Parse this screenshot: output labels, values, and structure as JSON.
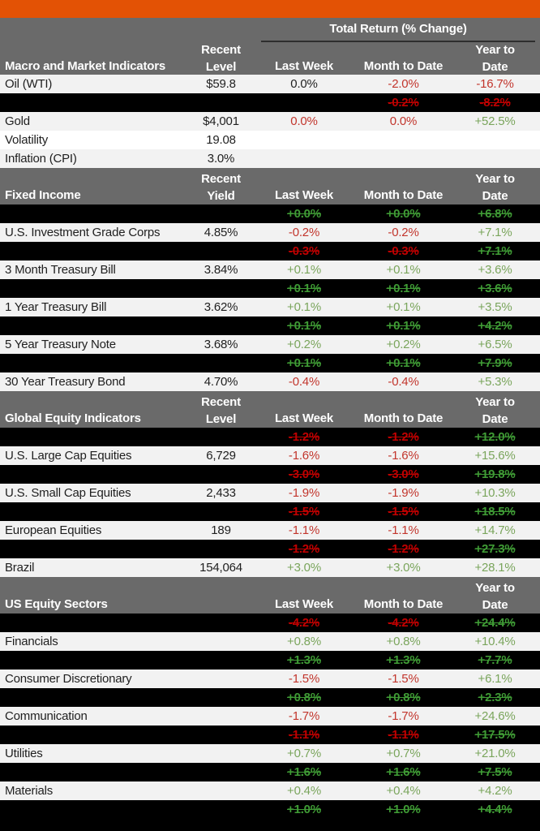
{
  "colors": {
    "accent_orange": "#E35205",
    "header_gray": "#6A6A6A",
    "row_light": "#F2F2F2",
    "row_white": "#FFFFFF",
    "row_black": "#000000",
    "negative_red": "#C2352C",
    "positive_green": "#7AA55C",
    "redacted_red": "#C00000",
    "redacted_green": "#3F9B35"
  },
  "header": {
    "total_return": "Total Return (% Change)",
    "last_week": "Last Week",
    "month_to_date": "Month to Date",
    "year_to": "Year to",
    "date": "Date"
  },
  "sections": [
    {
      "title": "Macro and Market Indicators",
      "banner": true,
      "level_header": [
        "Recent",
        "Level"
      ],
      "rows": [
        {
          "type": "data",
          "bg": "light",
          "label": "Oil (WTI)",
          "level": "$59.8",
          "cells": [
            [
              "0.0%",
              "dark"
            ],
            [
              "-2.0%",
              "red"
            ],
            [
              "-16.7%",
              "red"
            ]
          ]
        },
        {
          "type": "black",
          "label": "",
          "level": "",
          "cells": [
            [
              "",
              ""
            ],
            [
              "-0.2%",
              "red"
            ],
            [
              "-8.2%",
              "red"
            ]
          ]
        },
        {
          "type": "data",
          "bg": "light",
          "label": "Gold",
          "level": "$4,001",
          "cells": [
            [
              "0.0%",
              "red"
            ],
            [
              "0.0%",
              "red"
            ],
            [
              "+52.5%",
              "green"
            ]
          ]
        },
        {
          "type": "data",
          "bg": "white",
          "label": "Volatility",
          "level": "19.08",
          "cells": [
            [
              "",
              ""
            ],
            [
              "",
              ""
            ],
            [
              "",
              ""
            ]
          ]
        },
        {
          "type": "data",
          "bg": "light",
          "label": "Inflation (CPI)",
          "level": "3.0%",
          "cells": [
            [
              "",
              ""
            ],
            [
              "",
              ""
            ],
            [
              "",
              ""
            ]
          ]
        }
      ]
    },
    {
      "title": "Fixed Income",
      "banner": false,
      "level_header": [
        "Recent",
        "Yield"
      ],
      "rows": [
        {
          "type": "black",
          "label": "",
          "level": "",
          "cells": [
            [
              "+0.0%",
              "green"
            ],
            [
              "+0.0%",
              "green"
            ],
            [
              "+6.8%",
              "green"
            ]
          ]
        },
        {
          "type": "data",
          "bg": "light",
          "label": "U.S. Investment Grade Corps",
          "level": "4.85%",
          "cells": [
            [
              "-0.2%",
              "red"
            ],
            [
              "-0.2%",
              "red"
            ],
            [
              "+7.1%",
              "green"
            ]
          ]
        },
        {
          "type": "black",
          "label": "",
          "level": "",
          "cells": [
            [
              "-0.3%",
              "red"
            ],
            [
              "-0.3%",
              "red"
            ],
            [
              "+7.1%",
              "green"
            ]
          ]
        },
        {
          "type": "data",
          "bg": "light",
          "label": "3 Month Treasury Bill",
          "level": "3.84%",
          "cells": [
            [
              "+0.1%",
              "green"
            ],
            [
              "+0.1%",
              "green"
            ],
            [
              "+3.6%",
              "green"
            ]
          ]
        },
        {
          "type": "black",
          "label": "",
          "level": "",
          "cells": [
            [
              "+0.1%",
              "green"
            ],
            [
              "+0.1%",
              "green"
            ],
            [
              "+3.6%",
              "green"
            ]
          ]
        },
        {
          "type": "data",
          "bg": "light",
          "label": "1 Year Treasury Bill",
          "level": "3.62%",
          "cells": [
            [
              "+0.1%",
              "green"
            ],
            [
              "+0.1%",
              "green"
            ],
            [
              "+3.5%",
              "green"
            ]
          ]
        },
        {
          "type": "black",
          "label": "",
          "level": "",
          "cells": [
            [
              "+0.1%",
              "green"
            ],
            [
              "+0.1%",
              "green"
            ],
            [
              "+4.2%",
              "green"
            ]
          ]
        },
        {
          "type": "data",
          "bg": "light",
          "label": "5 Year Treasury Note",
          "level": "3.68%",
          "cells": [
            [
              "+0.2%",
              "green"
            ],
            [
              "+0.2%",
              "green"
            ],
            [
              "+6.5%",
              "green"
            ]
          ]
        },
        {
          "type": "black",
          "label": "",
          "level": "",
          "cells": [
            [
              "+0.1%",
              "green"
            ],
            [
              "+0.1%",
              "green"
            ],
            [
              "+7.9%",
              "green"
            ]
          ]
        },
        {
          "type": "data",
          "bg": "light",
          "label": "30 Year Treasury Bond",
          "level": "4.70%",
          "cells": [
            [
              "-0.4%",
              "red"
            ],
            [
              "-0.4%",
              "red"
            ],
            [
              "+5.3%",
              "green"
            ]
          ]
        }
      ]
    },
    {
      "title": "Global Equity Indicators",
      "banner": false,
      "level_header": [
        "Recent",
        "Level"
      ],
      "rows": [
        {
          "type": "black",
          "label": "",
          "level": "",
          "cells": [
            [
              "-1.2%",
              "red"
            ],
            [
              "-1.2%",
              "red"
            ],
            [
              "+12.0%",
              "green"
            ]
          ]
        },
        {
          "type": "data",
          "bg": "light",
          "label": "U.S. Large Cap Equities",
          "level": "6,729",
          "cells": [
            [
              "-1.6%",
              "red"
            ],
            [
              "-1.6%",
              "red"
            ],
            [
              "+15.6%",
              "green"
            ]
          ]
        },
        {
          "type": "black",
          "label": "",
          "level": "",
          "cells": [
            [
              "-3.0%",
              "red"
            ],
            [
              "-3.0%",
              "red"
            ],
            [
              "+19.8%",
              "green"
            ]
          ]
        },
        {
          "type": "data",
          "bg": "light",
          "label": "U.S. Small Cap Equities",
          "level": "2,433",
          "cells": [
            [
              "-1.9%",
              "red"
            ],
            [
              "-1.9%",
              "red"
            ],
            [
              "+10.3%",
              "green"
            ]
          ]
        },
        {
          "type": "black",
          "label": "",
          "level": "",
          "cells": [
            [
              "-1.5%",
              "red"
            ],
            [
              "-1.5%",
              "red"
            ],
            [
              "+18.5%",
              "green"
            ]
          ]
        },
        {
          "type": "data",
          "bg": "light",
          "label": "European Equities",
          "level": "189",
          "cells": [
            [
              "-1.1%",
              "red"
            ],
            [
              "-1.1%",
              "red"
            ],
            [
              "+14.7%",
              "green"
            ]
          ]
        },
        {
          "type": "black",
          "label": "",
          "level": "",
          "cells": [
            [
              "-1.2%",
              "red"
            ],
            [
              "-1.2%",
              "red"
            ],
            [
              "+27.3%",
              "green"
            ]
          ]
        },
        {
          "type": "data",
          "bg": "light",
          "label": "Brazil",
          "level": "154,064",
          "cells": [
            [
              "+3.0%",
              "green"
            ],
            [
              "+3.0%",
              "green"
            ],
            [
              "+28.1%",
              "green"
            ]
          ]
        }
      ]
    },
    {
      "title": "US Equity Sectors",
      "banner": false,
      "level_header": null,
      "rows": [
        {
          "type": "black",
          "label": "",
          "level": "",
          "cells": [
            [
              "-4.2%",
              "red"
            ],
            [
              "-4.2%",
              "red"
            ],
            [
              "+24.4%",
              "green"
            ]
          ]
        },
        {
          "type": "data",
          "bg": "light",
          "label": "Financials",
          "level": "",
          "cells": [
            [
              "+0.8%",
              "green"
            ],
            [
              "+0.8%",
              "green"
            ],
            [
              "+10.4%",
              "green"
            ]
          ]
        },
        {
          "type": "black",
          "label": "",
          "level": "",
          "cells": [
            [
              "+1.3%",
              "green"
            ],
            [
              "+1.3%",
              "green"
            ],
            [
              "+7.7%",
              "green"
            ]
          ]
        },
        {
          "type": "data",
          "bg": "light",
          "label": "Consumer Discretionary",
          "level": "",
          "cells": [
            [
              "-1.5%",
              "red"
            ],
            [
              "-1.5%",
              "red"
            ],
            [
              "+6.1%",
              "green"
            ]
          ]
        },
        {
          "type": "black",
          "label": "",
          "level": "",
          "cells": [
            [
              "+0.8%",
              "green"
            ],
            [
              "+0.8%",
              "green"
            ],
            [
              "+2.3%",
              "green"
            ]
          ]
        },
        {
          "type": "data",
          "bg": "light",
          "label": "Communication",
          "level": "",
          "cells": [
            [
              "-1.7%",
              "red"
            ],
            [
              "-1.7%",
              "red"
            ],
            [
              "+24.6%",
              "green"
            ]
          ]
        },
        {
          "type": "black",
          "label": "",
          "level": "",
          "cells": [
            [
              "-1.1%",
              "red"
            ],
            [
              "-1.1%",
              "red"
            ],
            [
              "+17.5%",
              "green"
            ]
          ]
        },
        {
          "type": "data",
          "bg": "light",
          "label": "Utilities",
          "level": "",
          "cells": [
            [
              "+0.7%",
              "green"
            ],
            [
              "+0.7%",
              "green"
            ],
            [
              "+21.0%",
              "green"
            ]
          ]
        },
        {
          "type": "black",
          "label": "",
          "level": "",
          "cells": [
            [
              "+1.6%",
              "green"
            ],
            [
              "+1.6%",
              "green"
            ],
            [
              "+7.5%",
              "green"
            ]
          ]
        },
        {
          "type": "data",
          "bg": "light",
          "label": "Materials",
          "level": "",
          "cells": [
            [
              "+0.4%",
              "green"
            ],
            [
              "+0.4%",
              "green"
            ],
            [
              "+4.2%",
              "green"
            ]
          ]
        },
        {
          "type": "black",
          "label": "",
          "level": "",
          "cells": [
            [
              "+1.0%",
              "green"
            ],
            [
              "+1.0%",
              "green"
            ],
            [
              "+4.4%",
              "green"
            ]
          ]
        }
      ]
    }
  ]
}
